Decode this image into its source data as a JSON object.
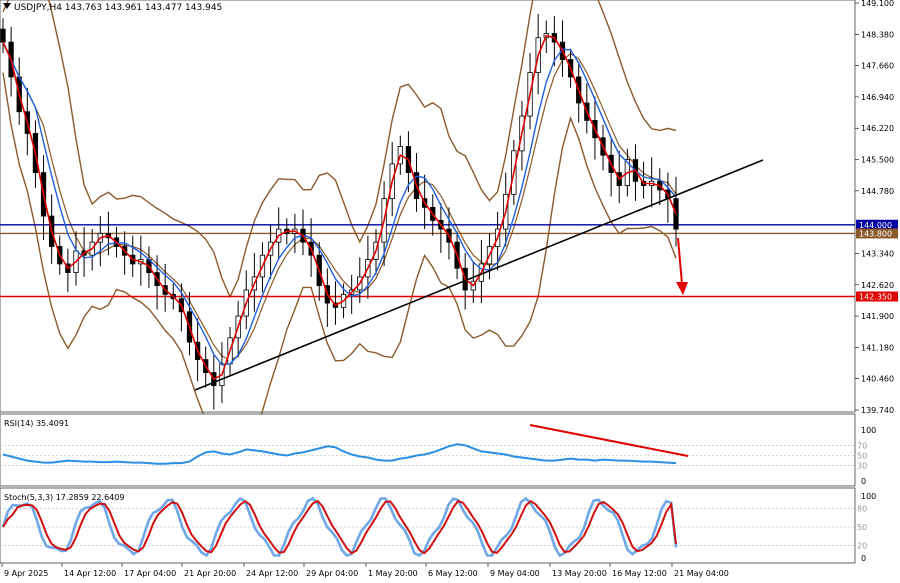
{
  "title": "USDJPY,H4  143.763 143.961 143.477 143.945",
  "rsi_title": "RSI(14) 35.4091",
  "stoch_title": "Stoch(5,3,3) 17.2859 22.6409",
  "colors": {
    "background": "#ffffff",
    "candle": "#000000",
    "bollinger": "#8b5a2b",
    "ma_fast": "#e00000",
    "ma_slow": "#2060e0",
    "rsi": "#2b8fe6",
    "stoch_main": "#6fa8e8",
    "stoch_signal": "#d01010",
    "resistance": "#0000a0",
    "support_mid": "#8b5a2b",
    "target": "#e00000",
    "trendline": "#000000"
  },
  "chart_data": [
    {
      "type": "candlestick",
      "symbol": "USDJPY",
      "timeframe": "H4",
      "ohlc_last": {
        "open": 143.763,
        "high": 143.961,
        "low": 143.477,
        "close": 143.945
      },
      "y_ticks": [
        "149.100",
        "148.380",
        "147.660",
        "146.940",
        "146.220",
        "145.500",
        "144.780",
        "144.000",
        "143.800",
        "143.340",
        "142.620",
        "142.350",
        "141.900",
        "141.180",
        "140.460",
        "139.740"
      ],
      "y_range": [
        139.74,
        149.1
      ],
      "x_ticks": [
        "9 Apr 2025",
        "14 Apr 12:00",
        "17 Apr 04:00",
        "21 Apr 20:00",
        "24 Apr 12:00",
        "29 Apr 04:00",
        "1 May 20:00",
        "6 May 12:00",
        "9 May 04:00",
        "13 May 20:00",
        "16 May 12:00",
        "21 May 04:00"
      ],
      "close_series": [
        148.2,
        147.4,
        146.6,
        146.1,
        145.2,
        144.2,
        143.5,
        143.1,
        142.9,
        143.4,
        143.3,
        143.6,
        143.8,
        143.7,
        143.5,
        143.3,
        143.1,
        143.2,
        142.9,
        142.6,
        142.4,
        142.3,
        142.0,
        141.3,
        140.9,
        140.6,
        140.3,
        140.8,
        141.4,
        141.9,
        142.5,
        142.8,
        143.3,
        143.6,
        143.9,
        143.8,
        143.9,
        143.6,
        143.3,
        142.6,
        142.2,
        142.1,
        142.4,
        142.5,
        142.8,
        143.2,
        143.6,
        144.6,
        145.4,
        145.8,
        145.2,
        144.6,
        144.4,
        144.1,
        143.9,
        143.6,
        143.0,
        142.5,
        142.7,
        143.1,
        143.5,
        143.9,
        144.7,
        145.7,
        146.5,
        147.5,
        148.3,
        148.4,
        148.2,
        147.8,
        147.4,
        146.8,
        146.4,
        146.0,
        145.6,
        145.2,
        144.9,
        145.5,
        145.0,
        144.9,
        145.0,
        144.8,
        144.6,
        143.9
      ],
      "levels": [
        {
          "label": "144.000",
          "value": 144.0
        },
        {
          "label": "143.800",
          "value": 143.8
        },
        {
          "label": "142.350",
          "value": 142.35
        }
      ],
      "trendline": {
        "from": {
          "time": "21 Apr 2025",
          "price": 140.4
        },
        "to": {
          "time": "21 May 2025",
          "price": 145.5
        }
      },
      "overlays": [
        "Bollinger Bands",
        "Moving Average (fast)",
        "Moving Average (slow)"
      ],
      "projection": "down arrow toward 142.350"
    },
    {
      "type": "line",
      "indicator": "RSI",
      "period": 14,
      "value": 35.4091,
      "y_ticks": [
        "100",
        "70",
        "50",
        "30",
        "0"
      ],
      "y_range": [
        0,
        100
      ],
      "values": [
        52,
        48,
        44,
        40,
        38,
        36,
        36,
        38,
        40,
        39,
        38,
        38,
        37,
        37,
        38,
        37,
        36,
        36,
        35,
        34,
        34,
        35,
        35,
        38,
        48,
        56,
        58,
        54,
        52,
        56,
        62,
        60,
        58,
        55,
        52,
        50,
        54,
        56,
        60,
        64,
        68,
        66,
        58,
        52,
        48,
        46,
        42,
        40,
        40,
        44,
        46,
        50,
        52,
        56,
        62,
        68,
        72,
        70,
        64,
        58,
        56,
        54,
        52,
        48,
        46,
        44,
        42,
        40,
        40,
        42,
        44,
        42,
        42,
        40,
        42,
        41,
        40,
        40,
        39,
        38,
        38,
        37,
        36,
        35
      ],
      "divergence_line": {
        "from": 74,
        "to": 48
      }
    },
    {
      "type": "line",
      "indicator": "Stochastic",
      "params": "5,3,3",
      "main": 17.2859,
      "signal": 22.6409,
      "y_ticks": [
        "100",
        "80",
        "50",
        "20",
        "0"
      ],
      "y_range": [
        0,
        100
      ]
    }
  ]
}
